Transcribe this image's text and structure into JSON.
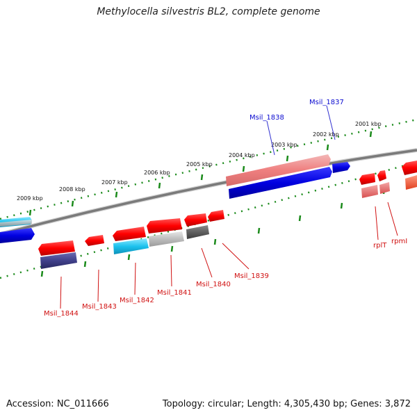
{
  "title": "Methylocella silvestris BL2, complete genome",
  "footer": {
    "accession": "Accession: NC_011666",
    "summary": "Topology: circular; Length: 4,305,430 bp; Genes: 3,872"
  },
  "ruler_labels": [
    "2001 kbp",
    "2002 kbp",
    "2003 kbp",
    "2004 kbp",
    "2005 kbp",
    "2006 kbp",
    "2007 kbp",
    "2008 kbp",
    "2009 kbp"
  ],
  "genes_forward": [
    "Msil_1838",
    "Msil_1837"
  ],
  "genes_reverse": [
    "Msil_1844",
    "Msil_1843",
    "Msil_1842",
    "Msil_1841",
    "Msil_1840",
    "Msil_1839",
    "rplT",
    "rpmI"
  ],
  "colors": {
    "forward_label": "#0a0ad0",
    "reverse_label": "#d01010",
    "backbone": "#7a7a7a",
    "ruler": "#1a8a1a"
  }
}
